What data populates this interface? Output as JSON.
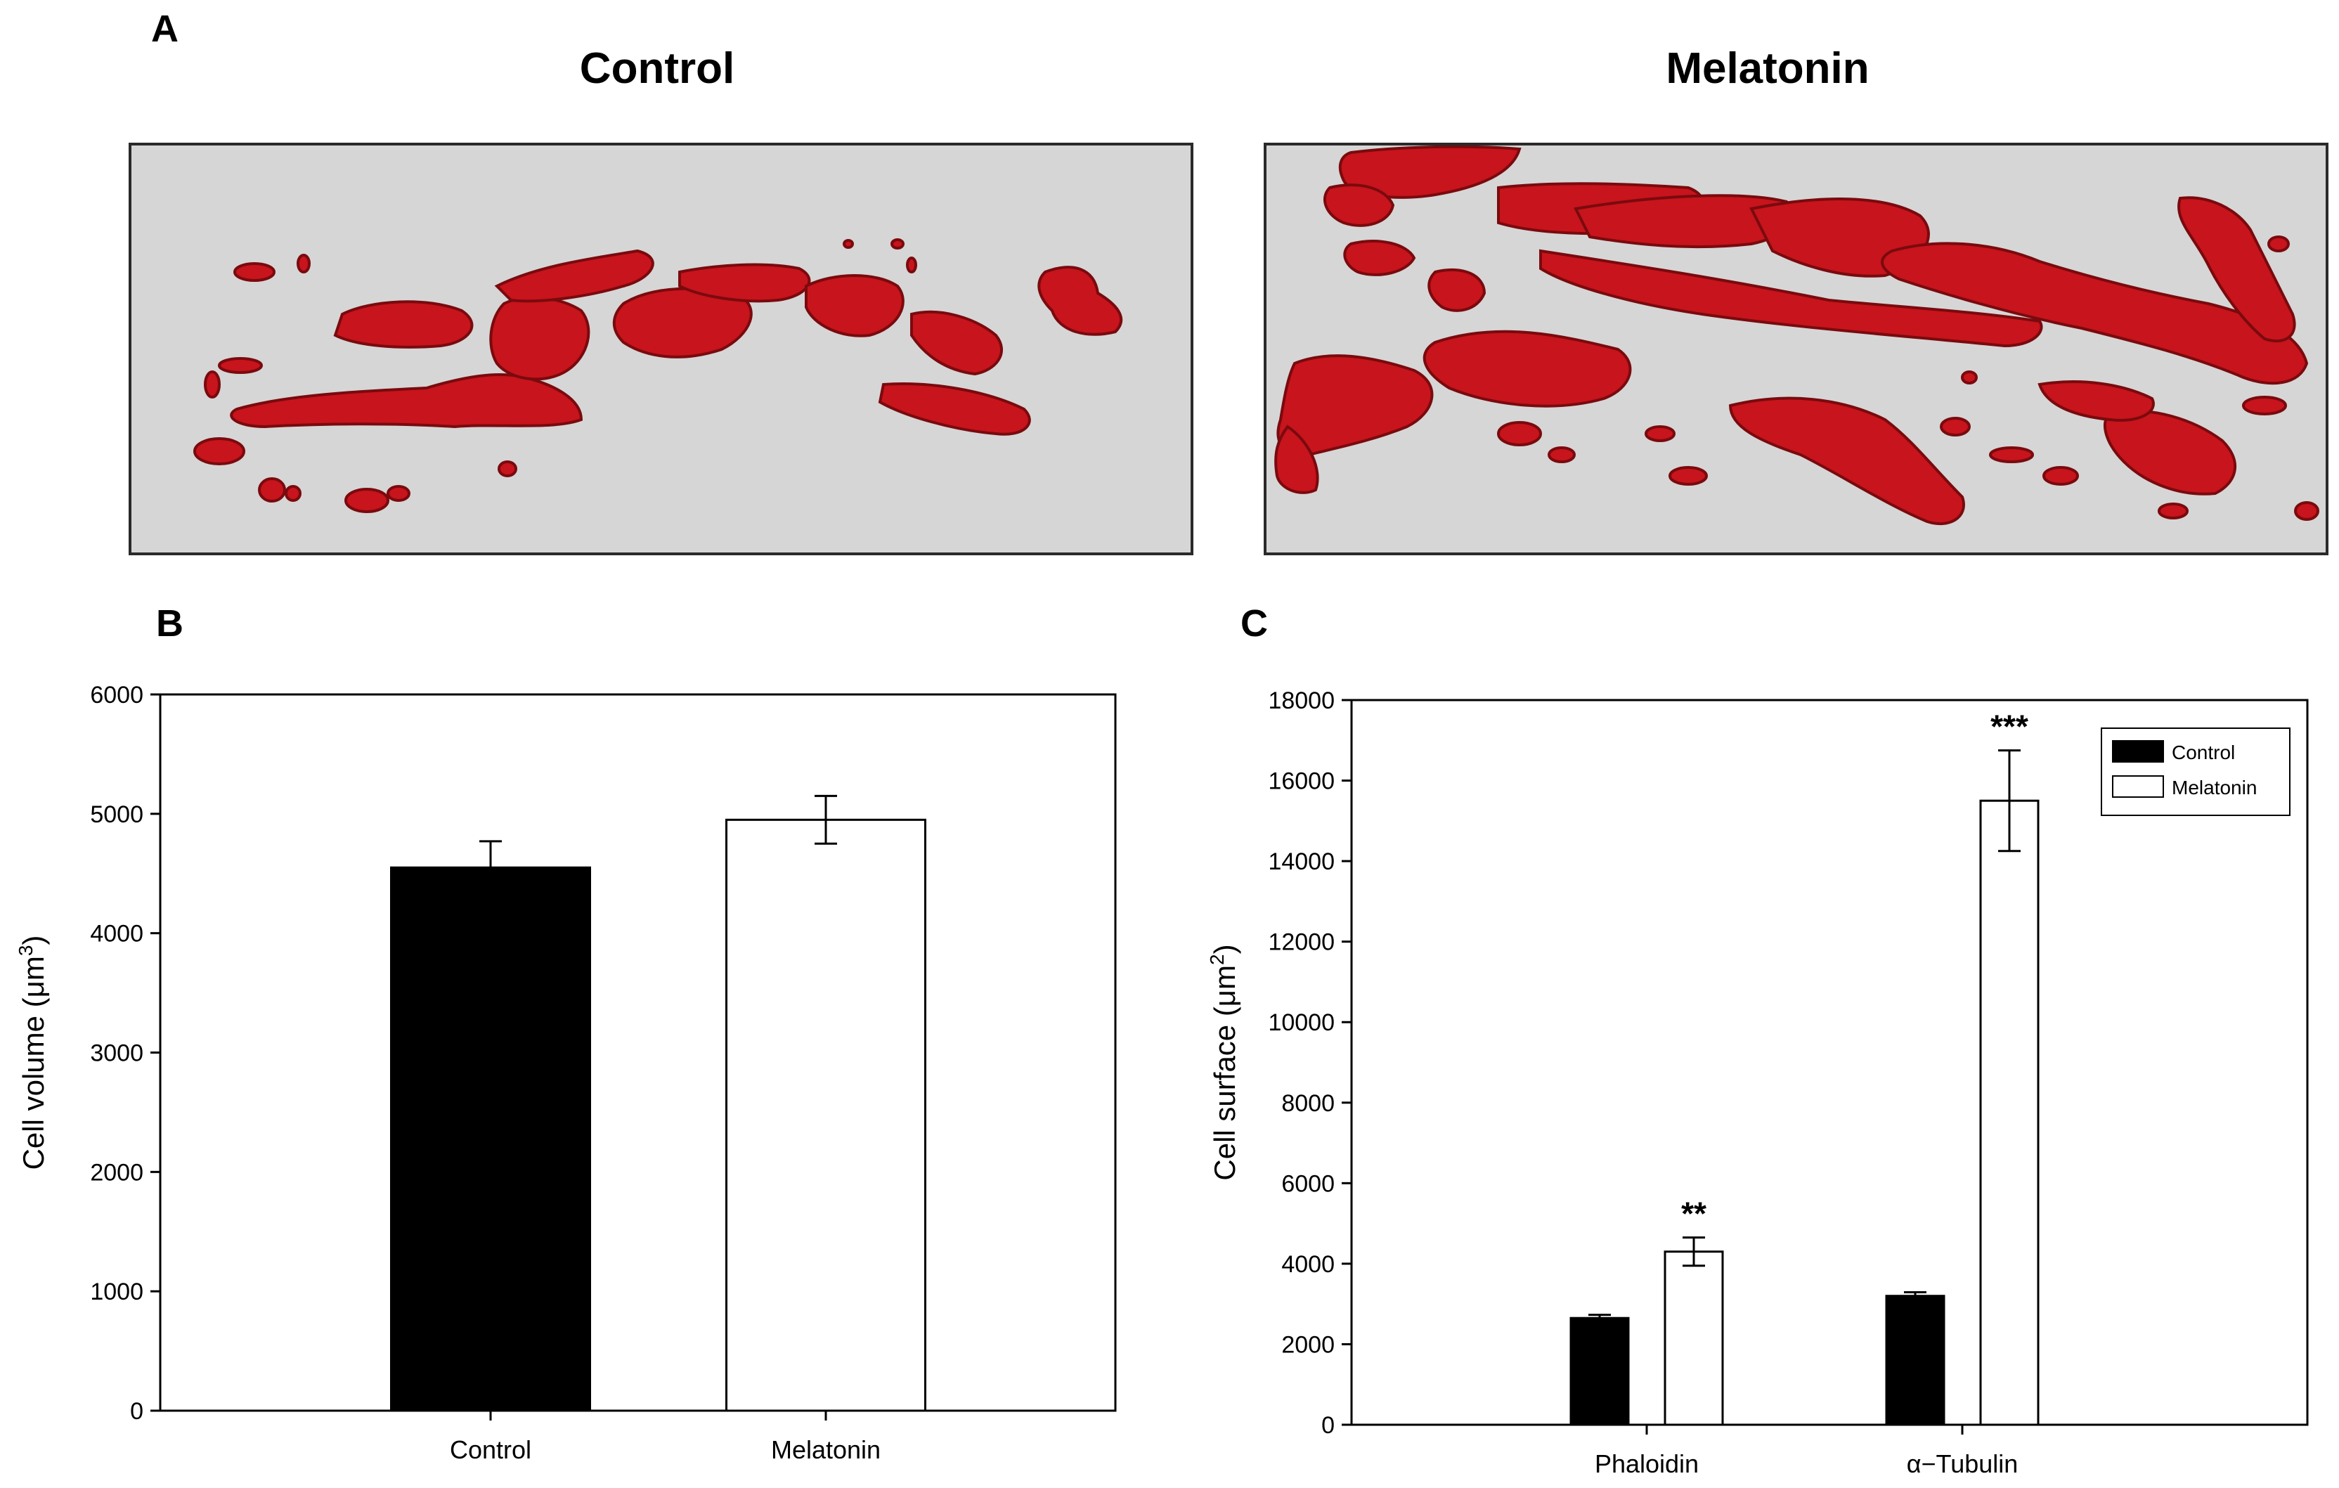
{
  "panel_a": {
    "letter": "A",
    "left_title": "Control",
    "right_title": "Melatonin"
  },
  "colors": {
    "cell": "#c8141c",
    "cell_dark": "#7a0a0e",
    "background": "#d6d6d6",
    "control_bar": "#000000",
    "melatonin_bar": "#ffffff"
  },
  "chart_data": [
    {
      "panel": "B",
      "type": "bar",
      "title": "",
      "xlabel": "",
      "ylabel": "Cell volume (μm3)",
      "ylabel_main": "Cell volume (μm",
      "ylabel_sup": "3",
      "ylabel_close": ")",
      "ylim": [
        0,
        6000
      ],
      "yticks": [
        0,
        1000,
        2000,
        3000,
        4000,
        5000,
        6000
      ],
      "categories": [
        "Control",
        "Melatonin"
      ],
      "values": [
        4550,
        4950
      ],
      "errors": [
        220,
        200
      ],
      "fills": [
        "#000000",
        "#ffffff"
      ]
    },
    {
      "panel": "C",
      "type": "bar",
      "title": "",
      "xlabel": "",
      "ylabel": "Cell surface (μm2)",
      "ylabel_main": "Cell surface (μm",
      "ylabel_sup": "2",
      "ylabel_close": ")",
      "ylim": [
        0,
        18000
      ],
      "yticks": [
        0,
        2000,
        4000,
        6000,
        8000,
        10000,
        12000,
        14000,
        16000,
        18000
      ],
      "categories": [
        "Phaloidin",
        "α−Tubulin"
      ],
      "series": [
        {
          "name": "Control",
          "values": [
            2650,
            3200
          ],
          "errors": [
            80,
            90
          ],
          "fill": "#000000"
        },
        {
          "name": "Melatonin",
          "values": [
            4300,
            15500
          ],
          "errors": [
            350,
            1250
          ],
          "fill": "#ffffff"
        }
      ],
      "annotations": [
        "**",
        "***"
      ],
      "legend": [
        "Control",
        "Melatonin"
      ],
      "legend_position": "top-right"
    }
  ]
}
